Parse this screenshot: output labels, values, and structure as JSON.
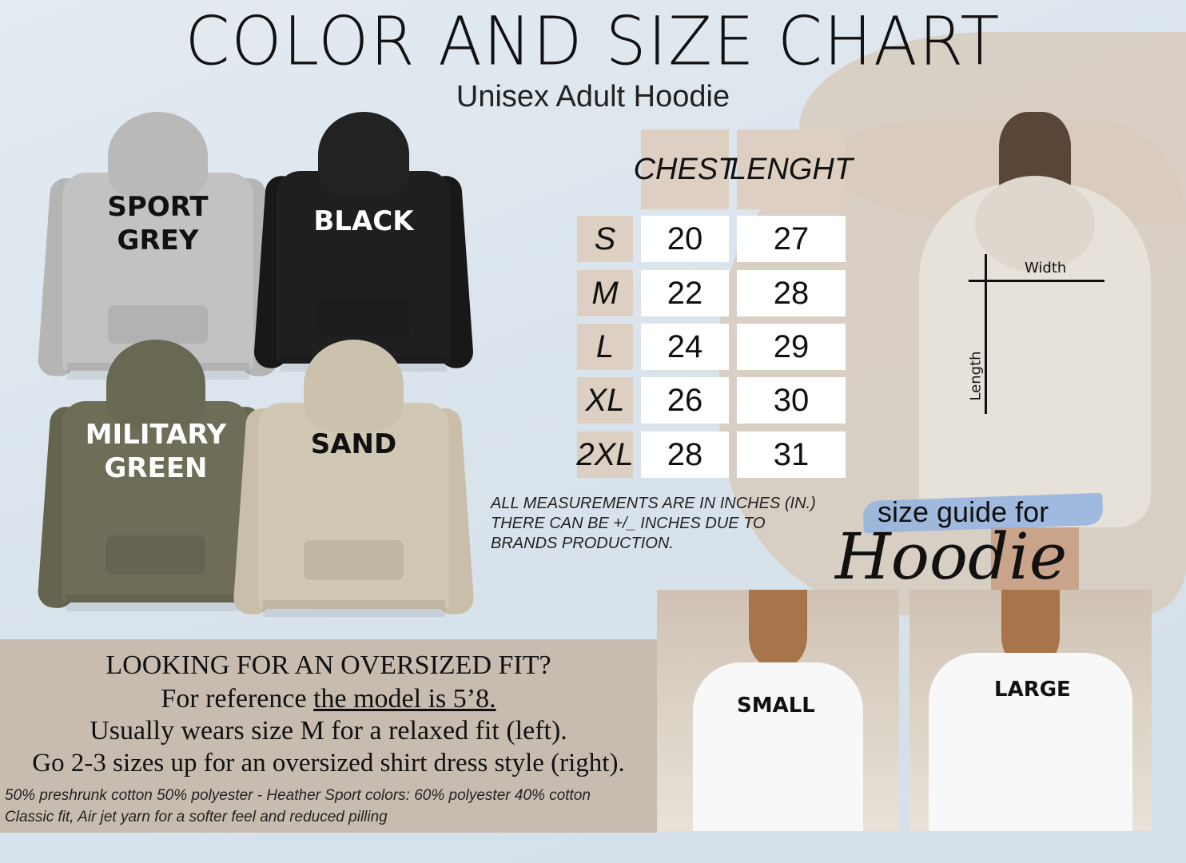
{
  "header": {
    "title": "COLOR AND SIZE CHART",
    "subtitle": "Unisex Adult  Hoodie"
  },
  "colors": [
    {
      "name": "SPORT GREY",
      "line1": "SPORT",
      "line2": "GREY",
      "hex": "#bdbdbd"
    },
    {
      "name": "BLACK",
      "line1": "BLACK",
      "line2": "",
      "hex": "#1c1c1c"
    },
    {
      "name": "MILITARY GREEN",
      "line1": "MILITARY",
      "line2": "GREEN",
      "hex": "#6b6a55"
    },
    {
      "name": "SAND",
      "line1": "SAND",
      "line2": "",
      "hex": "#cfc6b2"
    }
  ],
  "size_table": {
    "headers": [
      "CHEST",
      "LENGHT"
    ],
    "rows": [
      {
        "size": "S",
        "chest": "20",
        "length": "27"
      },
      {
        "size": "M",
        "chest": "22",
        "length": "28"
      },
      {
        "size": "L",
        "chest": "24",
        "length": "29"
      },
      {
        "size": "XL",
        "chest": "26",
        "length": "30"
      },
      {
        "size": "2XL",
        "chest": "28",
        "length": "31"
      }
    ]
  },
  "note": [
    "ALL MEASUREMENTS ARE IN INCHES (IN.)",
    "THERE CAN BE +/_ INCHES DUE TO",
    "BRANDS PRODUCTION."
  ],
  "model": {
    "width_label": "Width",
    "length_label": "Length"
  },
  "guide": {
    "line1": "size guide for",
    "line2": "Hoodie"
  },
  "fit": {
    "heading": "LOOKING FOR AN OVERSIZED FIT?",
    "line2_prefix": "For reference ",
    "line2_underlined": "the model is 5’8.",
    "line3": "Usually wears size M for a relaxed fit (left).",
    "line4": "Go 2-3 sizes up for an oversized shirt dress style (right).",
    "fine1": "50%  preshrunk cotton 50% polyester - Heather Sport colors: 60% polyester 40% cotton",
    "fine2": "Classic fit, Air jet yarn for a softer feel and reduced pilling"
  },
  "photos": {
    "small": "SMALL",
    "large": "LARGE"
  },
  "accent": {
    "beige": "#ddd0c2",
    "tan": "#c8bcb0",
    "brush_blue": "#8fb0e0"
  }
}
